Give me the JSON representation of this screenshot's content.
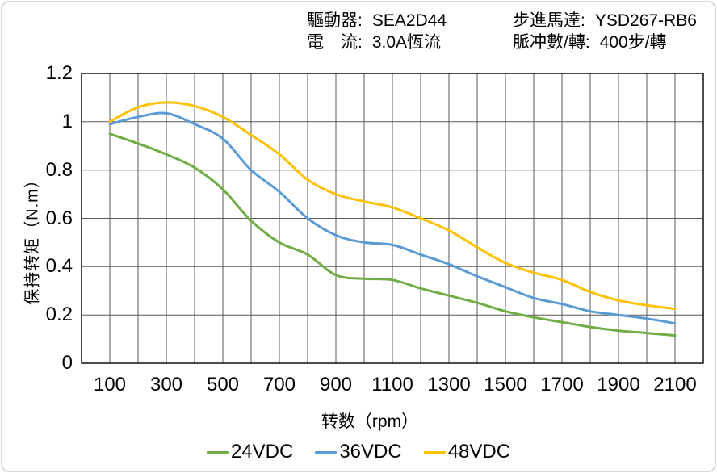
{
  "header": {
    "driver_label": "驅動器:",
    "driver_value": "SEA2D44",
    "current_label": "電　流:",
    "current_value": "3.0A恆流",
    "motor_label": "步進馬達:",
    "motor_value": "YSD267-RB6",
    "pulses_label": "脈冲數/轉:",
    "pulses_value": "400步/轉"
  },
  "chart_data": {
    "type": "line",
    "title": "",
    "xlabel": "转数（rpm）",
    "ylabel": "保持转矩（N.m）",
    "x": [
      100,
      200,
      300,
      400,
      500,
      600,
      700,
      800,
      900,
      1000,
      1100,
      1200,
      1300,
      1400,
      1500,
      1600,
      1700,
      1800,
      1900,
      2000,
      2100
    ],
    "series": [
      {
        "name": "24VDC",
        "color": "#70AD47",
        "values": [
          0.95,
          0.91,
          0.865,
          0.81,
          0.72,
          0.59,
          0.5,
          0.45,
          0.365,
          0.35,
          0.345,
          0.31,
          0.28,
          0.25,
          0.215,
          0.19,
          0.17,
          0.15,
          0.135,
          0.125,
          0.115
        ]
      },
      {
        "name": "36VDC",
        "color": "#5B9BD5",
        "values": [
          0.99,
          1.02,
          1.035,
          0.99,
          0.93,
          0.8,
          0.71,
          0.6,
          0.53,
          0.5,
          0.49,
          0.45,
          0.41,
          0.36,
          0.315,
          0.27,
          0.245,
          0.215,
          0.2,
          0.185,
          0.165
        ]
      },
      {
        "name": "48VDC",
        "color": "#FFC000",
        "values": [
          1.0,
          1.06,
          1.08,
          1.065,
          1.02,
          0.945,
          0.865,
          0.76,
          0.7,
          0.67,
          0.645,
          0.6,
          0.55,
          0.48,
          0.415,
          0.375,
          0.345,
          0.295,
          0.26,
          0.24,
          0.225
        ]
      }
    ],
    "xlim": [
      0,
      2200
    ],
    "ylim": [
      0,
      1.2
    ],
    "x_gridline_step": 100,
    "y_gridline_step": 0.2,
    "xticks": [
      100,
      300,
      500,
      700,
      900,
      1100,
      1300,
      1500,
      1700,
      1900,
      2100
    ],
    "yticks": [
      "0",
      "0.2",
      "0.4",
      "0.6",
      "0.8",
      "1",
      "1.2"
    ],
    "grid": true,
    "legend_position": "bottom",
    "gridline_color": "#595959",
    "border_color": "#1f1f1f"
  }
}
